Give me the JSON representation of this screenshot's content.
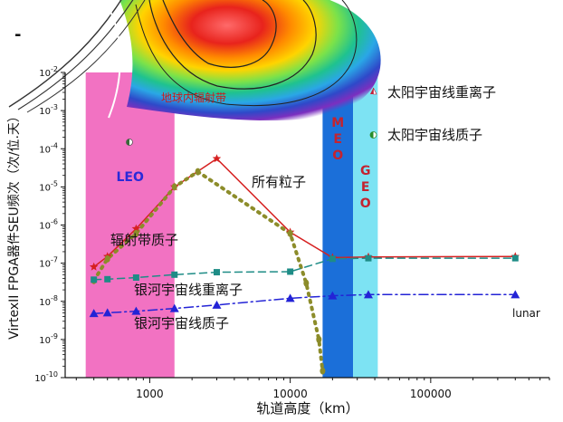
{
  "chart_data": {
    "type": "line",
    "xlabel": "轨道高度（km）",
    "ylabel": "VirtexII FPGA器件SEU频次（次/位.天）",
    "x_scale": "log",
    "y_scale": "log",
    "xlim": [
      250,
      700000
    ],
    "ylim": [
      1e-10,
      0.01
    ],
    "x_ticks": [
      1000,
      10000,
      100000
    ],
    "x_tick_labels": [
      "1000",
      "10000",
      "100000"
    ],
    "y_tick_exponents": [
      -2,
      -3,
      -4,
      -5,
      -6,
      -7,
      -8,
      -9,
      -10
    ],
    "regions": [
      {
        "label": "LEO",
        "x_from": 350,
        "x_to": 1500,
        "color": "#f272c2"
      },
      {
        "label": "MEO",
        "x_from": 17000,
        "x_to": 28000,
        "color": "#1b6fd9"
      },
      {
        "label": "GEO",
        "x_from": 28000,
        "x_to": 42000,
        "color": "#7de3f3"
      }
    ],
    "belt_label": "地球内辐射带",
    "series": [
      {
        "name": "所有粒子",
        "color": "#d62020",
        "marker": "star",
        "dash": "solid",
        "x": [
          400,
          500,
          800,
          1500,
          3000,
          10000,
          20000,
          36000,
          400000
        ],
        "y": [
          8e-08,
          1.5e-07,
          8e-07,
          1e-05,
          5.5e-05,
          6.5e-07,
          1.4e-07,
          1.45e-07,
          1.5e-07
        ]
      },
      {
        "name": "辐射带质子",
        "color": "#8c8c2a",
        "marker": "dot",
        "dash": "dots",
        "x": [
          400,
          500,
          800,
          1500,
          2200,
          10000,
          13000,
          16000,
          17000
        ],
        "y": [
          3.5e-08,
          1.3e-07,
          6e-07,
          1e-05,
          2.5e-05,
          6e-07,
          3e-08,
          1e-09,
          1.5e-10
        ]
      },
      {
        "name": "银河宇宙线重离子",
        "color": "#1e8c86",
        "marker": "square",
        "dash": "dash",
        "x": [
          400,
          500,
          800,
          1500,
          3000,
          10000,
          20000,
          36000,
          400000
        ],
        "y": [
          3.7e-08,
          3.8e-08,
          4.2e-08,
          5e-08,
          5.8e-08,
          6e-08,
          1.3e-07,
          1.35e-07,
          1.35e-07
        ]
      },
      {
        "name": "银河宇宙线质子",
        "color": "#2323d6",
        "marker": "triangle",
        "dash": "dashdot",
        "x": [
          400,
          500,
          800,
          1500,
          3000,
          10000,
          20000,
          36000,
          400000
        ],
        "y": [
          4.8e-09,
          5e-09,
          5.5e-09,
          6.5e-09,
          8e-09,
          1.2e-08,
          1.4e-08,
          1.5e-08,
          1.5e-08
        ]
      }
    ],
    "legend": [
      {
        "label": "太阳宇宙线重离子",
        "symbol": "triangle-half"
      },
      {
        "label": "太阳宇宙线质子",
        "symbol": "circle-half"
      }
    ],
    "annotations": {
      "lunar": "lunar",
      "dash_mark": "-"
    }
  }
}
